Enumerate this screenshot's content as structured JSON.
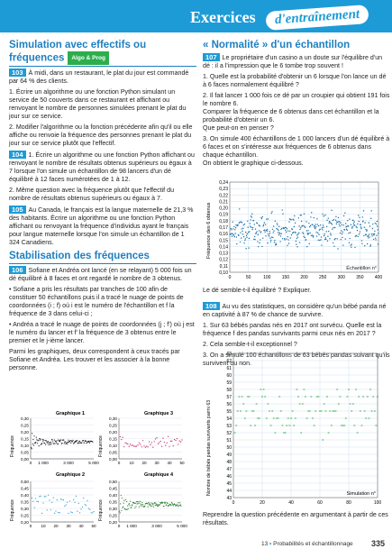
{
  "header": {
    "title": "Exercices",
    "subtitle": "d'entraînement"
  },
  "left": {
    "sec1_title": "Simulation avec effectifs ou fréquences",
    "sec1_badge": "Algo & Prog",
    "ex103_num": "103",
    "ex103_text": "À midi, dans un restaurant, le plat du jour est commandé par 64 % des clients.",
    "ex103_q1": "1. Écrire un algorithme ou une fonction Python simulant un service de 50 couverts dans ce restaurant et affichant ou renvoyant le nombre de personnes simulées prenant le plat du jour sur ce service.",
    "ex103_q2": "2. Modifier l'algorithme ou la fonction précédente afin qu'il ou elle affiche ou renvoie la fréquence des personnes prenant le plat du jour sur ce service plutôt que l'effectif.",
    "ex104_num": "104",
    "ex104_q1": "1. Écrire un algorithme ou une fonction Python affichant ou renvoyant le nombre de résultats obtenus supérieurs ou égaux à 7 lorsque l'on simule un échantillon de 98 lancers d'un dé équilibré à 12 faces numérotées de 1 à 12.",
    "ex104_q2": "2. Même question avec la fréquence plutôt que l'effectif du nombre de résultats obtenus supérieurs ou égaux à 7.",
    "ex105_num": "105",
    "ex105_text": "Au Canada, le français est la langue maternelle de 21,3 % des habitants. Écrire un algorithme ou une fonction Python affichant ou renvoyant la fréquence d'individus ayant le français pour langue maternelle lorsque l'on simule un échantillon de 1 324 Canadiens.",
    "sec2_title": "Stabilisation des fréquences",
    "ex106_num": "106",
    "ex106_text": "Sofiane et Andréa ont lancé (en se relayant) 5 000 fois un dé équilibré à 8 faces et ont regardé le nombre de 3 obtenus.",
    "ex106_b1": "• Sofiane a pris les résultats par tranches de 100 afin de constituer 50 échantillons puis il a tracé le nuage de points de coordonnées (i ; f) où i est le numéro de l'échantillon et f la fréquence de 3 dans celui-ci ;",
    "ex106_b2": "• Andréa a tracé le nuage de points de coordonnées (j ; f') où j est le numéro du lancer et f' la fréquence de 3 obtenus entre le premier et le j-ième lancer.",
    "ex106_end": "Parmi les graphiques, deux correspondent à ceux tracés par Sofiane et Andréa. Les trouver et les associer à la bonne personne.",
    "g1_title": "Graphique 1",
    "g2_title": "Graphique 2",
    "g3_title": "Graphique 3",
    "g4_title": "Graphique 4",
    "freq_label": "Fréquence"
  },
  "right": {
    "sec3_title": "« Normalité » d'un échantillon",
    "ex107_num": "107",
    "ex107_text": "Le propriétaire d'un casino a un doute sur l'équilibre d'un dé : il a l'impression que le 6 tombe trop souvent !",
    "ex107_q1": "1. Quelle est la probabilité d'obtenir un 6 lorsque l'on lance un dé à 6 faces normalement équilibré ?",
    "ex107_q2": "2. Il fait lancer 1 000 fois ce dé par un croupier qui obtient 191 fois le nombre 6.",
    "ex107_q2b": "Comparer la fréquence de 6 obtenus dans cet échantillon et la probabilité d'obtenir un 6.",
    "ex107_q2c": "Que peut-on en penser ?",
    "ex107_q3": "3. On simule 400 échantillons de 1 000 lancers d'un dé équilibré à 6 faces et on s'intéresse aux fréquences de 6 obtenus dans chaque échantillon.",
    "ex107_q3b": "On obtient le graphique ci-dessous.",
    "c1_ylabel": "Fréquence des 6 obtenus",
    "c1_xlabel": "Échantillon n°",
    "ex107_after": "Le dé semble-t-il équilibré ? Expliquer.",
    "ex108_num": "108",
    "ex108_text": "Au vu des statistiques, on considère qu'un bébé panda né en captivité à 87 % de chance de survivre.",
    "ex108_q1": "1. Sur 63 bébés pandas nés en 2017 ont survécu. Quelle est la fréquence f des pandas survivants parmi ceux nés en 2017 ?",
    "ex108_q2": "2. Cela semble-t-il exceptionnel ?",
    "ex108_q3": "3. On a simulé 100 échantillons de 63 bébés pandas suivant qu'ils survivent ou non.",
    "c2_ylabel": "Nombre de bébés pandas survivants parmi 63",
    "c2_xlabel": "Simulation n°",
    "ex108_after": "Reprendre la question précédente en argumentant à partir de ces résultats."
  },
  "footer": {
    "chapter": "13",
    "text": "Probabilités et échantillonnage",
    "page": "335"
  },
  "chart_data": [
    {
      "type": "scatter",
      "title": "",
      "xlabel": "Échantillon n°",
      "ylabel": "Fréquence des 6 obtenus",
      "xlim": [
        0,
        400
      ],
      "ylim": [
        0.1,
        0.24
      ],
      "xticks": [
        0,
        50,
        100,
        150,
        200,
        250,
        300,
        350,
        400
      ],
      "yticks": [
        0.1,
        0.11,
        0.12,
        0.13,
        0.14,
        0.15,
        0.16,
        0.17,
        0.18,
        0.19,
        0.2,
        0.21,
        0.22,
        0.23,
        0.24
      ],
      "points_summary": "400 points clustered between 0.14 and 0.19"
    },
    {
      "type": "scatter",
      "title": "",
      "xlabel": "Simulation n°",
      "ylabel": "Nombre de bébés pandas survivants parmi 63",
      "xlim": [
        0,
        100
      ],
      "ylim": [
        43,
        63
      ],
      "xticks": [
        0,
        20,
        40,
        60,
        80,
        100
      ],
      "yticks": [
        43,
        44,
        45,
        46,
        47,
        48,
        49,
        50,
        51,
        52,
        53,
        54,
        55,
        56,
        57,
        58,
        59,
        60,
        61,
        62,
        63
      ],
      "points_summary": "100 points mostly between 52 and 59"
    }
  ]
}
